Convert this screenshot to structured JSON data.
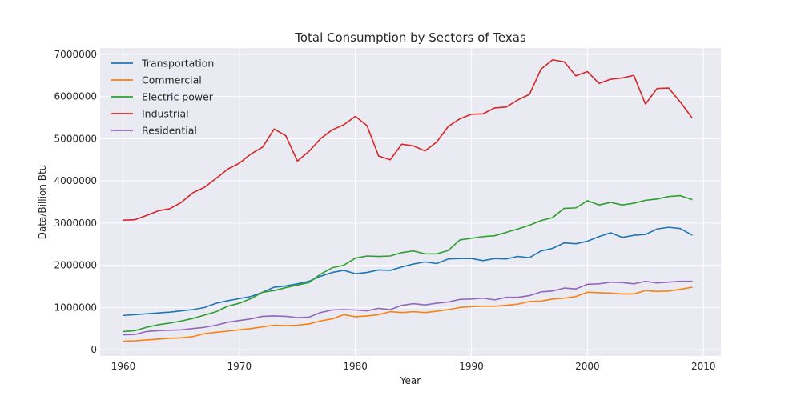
{
  "chart_data": {
    "type": "line",
    "title": "Total Consumption by Sectors of Texas",
    "xlabel": "Year",
    "ylabel": "Data/Billion Btu",
    "xlim": [
      1958,
      2011.5
    ],
    "ylim": [
      -150000,
      7150000
    ],
    "xticks": [
      1960,
      1970,
      1980,
      1990,
      2000,
      2010
    ],
    "yticks": [
      0,
      1000000,
      2000000,
      3000000,
      4000000,
      5000000,
      6000000,
      7000000
    ],
    "grid": true,
    "legend_position": "top-left",
    "x": [
      1960,
      1961,
      1962,
      1963,
      1964,
      1965,
      1966,
      1967,
      1968,
      1969,
      1970,
      1971,
      1972,
      1973,
      1974,
      1975,
      1976,
      1977,
      1978,
      1979,
      1980,
      1981,
      1982,
      1983,
      1984,
      1985,
      1986,
      1987,
      1988,
      1989,
      1990,
      1991,
      1992,
      1993,
      1994,
      1995,
      1996,
      1997,
      1998,
      1999,
      2000,
      2001,
      2002,
      2003,
      2004,
      2005,
      2006,
      2007,
      2008,
      2009
    ],
    "series": [
      {
        "name": "Transportation",
        "color": "#1f77b4",
        "values": [
          810000,
          830000,
          850000,
          870000,
          890000,
          920000,
          950000,
          1000000,
          1100000,
          1160000,
          1210000,
          1260000,
          1360000,
          1480000,
          1510000,
          1560000,
          1620000,
          1740000,
          1830000,
          1880000,
          1800000,
          1830000,
          1890000,
          1880000,
          1960000,
          2030000,
          2080000,
          2040000,
          2150000,
          2160000,
          2160000,
          2110000,
          2160000,
          2150000,
          2210000,
          2180000,
          2340000,
          2400000,
          2530000,
          2510000,
          2570000,
          2680000,
          2770000,
          2660000,
          2710000,
          2730000,
          2860000,
          2900000,
          2870000,
          2720000
        ]
      },
      {
        "name": "Commercial",
        "color": "#ff7f0e",
        "values": [
          200000,
          210000,
          230000,
          250000,
          270000,
          280000,
          310000,
          380000,
          410000,
          440000,
          470000,
          500000,
          540000,
          580000,
          570000,
          580000,
          610000,
          680000,
          730000,
          830000,
          780000,
          800000,
          830000,
          900000,
          880000,
          900000,
          880000,
          910000,
          950000,
          1000000,
          1020000,
          1030000,
          1030000,
          1050000,
          1080000,
          1140000,
          1150000,
          1200000,
          1220000,
          1260000,
          1360000,
          1350000,
          1340000,
          1320000,
          1320000,
          1400000,
          1380000,
          1390000,
          1430000,
          1480000
        ]
      },
      {
        "name": "Electric power",
        "color": "#2ca02c",
        "values": [
          430000,
          450000,
          530000,
          590000,
          630000,
          680000,
          740000,
          820000,
          900000,
          1030000,
          1100000,
          1210000,
          1360000,
          1400000,
          1470000,
          1530000,
          1590000,
          1790000,
          1940000,
          2000000,
          2170000,
          2220000,
          2210000,
          2220000,
          2300000,
          2340000,
          2270000,
          2270000,
          2350000,
          2600000,
          2640000,
          2680000,
          2700000,
          2780000,
          2860000,
          2950000,
          3060000,
          3130000,
          3350000,
          3360000,
          3530000,
          3430000,
          3490000,
          3430000,
          3470000,
          3540000,
          3570000,
          3630000,
          3650000,
          3560000
        ]
      },
      {
        "name": "Industrial",
        "color": "#d62728",
        "values": [
          3070000,
          3080000,
          3180000,
          3290000,
          3340000,
          3490000,
          3720000,
          3850000,
          4060000,
          4280000,
          4420000,
          4640000,
          4800000,
          5230000,
          5070000,
          4470000,
          4700000,
          5000000,
          5210000,
          5330000,
          5530000,
          5310000,
          4590000,
          4500000,
          4870000,
          4830000,
          4710000,
          4920000,
          5290000,
          5470000,
          5580000,
          5590000,
          5730000,
          5750000,
          5920000,
          6050000,
          6650000,
          6870000,
          6820000,
          6490000,
          6590000,
          6310000,
          6410000,
          6440000,
          6500000,
          5820000,
          6190000,
          6200000,
          5870000,
          5500000
        ]
      },
      {
        "name": "Residential",
        "color": "#9467bd",
        "values": [
          350000,
          360000,
          430000,
          450000,
          460000,
          470000,
          500000,
          530000,
          580000,
          650000,
          690000,
          730000,
          790000,
          800000,
          790000,
          760000,
          770000,
          880000,
          940000,
          950000,
          940000,
          920000,
          980000,
          950000,
          1050000,
          1090000,
          1060000,
          1100000,
          1130000,
          1190000,
          1200000,
          1220000,
          1180000,
          1240000,
          1240000,
          1280000,
          1370000,
          1390000,
          1460000,
          1440000,
          1550000,
          1560000,
          1600000,
          1590000,
          1560000,
          1620000,
          1580000,
          1600000,
          1620000,
          1620000
        ]
      }
    ]
  }
}
